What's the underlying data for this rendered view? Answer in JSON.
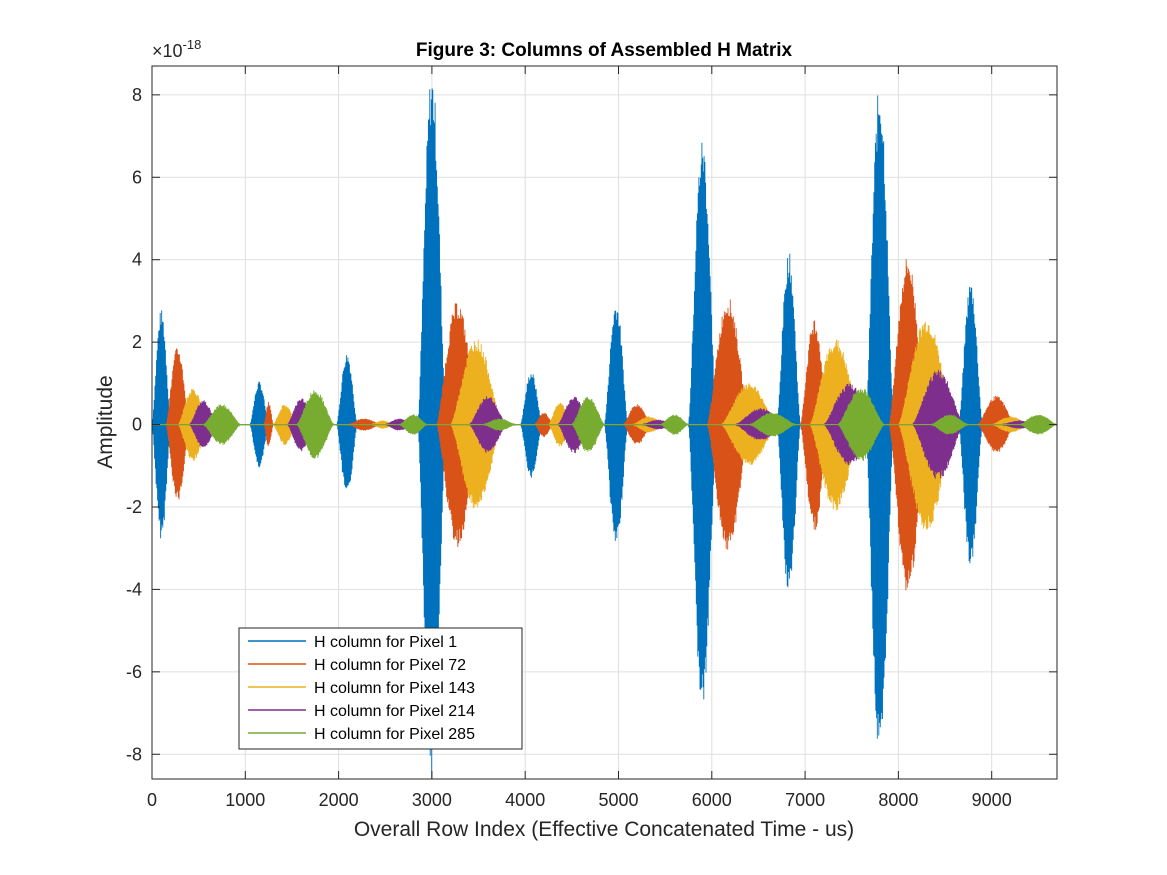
{
  "chart_data": {
    "type": "line",
    "title": "Figure 3: Columns of Assembled H Matrix",
    "xlabel": "Overall Row Index (Effective Concatenated Time - us)",
    "ylabel": "Amplitude",
    "y_exponent_base": "×10",
    "y_exponent_power": "-18",
    "xlim": [
      0,
      9700
    ],
    "ylim": [
      -8.6,
      8.7
    ],
    "xticks": [
      0,
      1000,
      2000,
      3000,
      4000,
      5000,
      6000,
      7000,
      8000,
      9000
    ],
    "yticks": [
      -8,
      -6,
      -4,
      -2,
      0,
      2,
      4,
      6,
      8
    ],
    "grid": true,
    "legend_location": "bottom-left",
    "series": [
      {
        "name": "H column for Pixel 1",
        "color": "#0072BD",
        "bursts": [
          {
            "start": 0,
            "end": 200,
            "amp": 2.8
          },
          {
            "start": 1050,
            "end": 1250,
            "amp": 1.05
          },
          {
            "start": 1980,
            "end": 2200,
            "amp": 1.75
          },
          {
            "start": 2850,
            "end": 3150,
            "amp": 8.6
          },
          {
            "start": 3950,
            "end": 4180,
            "amp": 1.3
          },
          {
            "start": 4850,
            "end": 5100,
            "amp": 3.0
          },
          {
            "start": 5750,
            "end": 6050,
            "amp": 7.0
          },
          {
            "start": 6700,
            "end": 6950,
            "amp": 4.2
          },
          {
            "start": 7650,
            "end": 7950,
            "amp": 8.3
          },
          {
            "start": 8650,
            "end": 8900,
            "amp": 3.5
          }
        ]
      },
      {
        "name": "H column for Pixel 72",
        "color": "#D95319",
        "bursts": [
          {
            "start": 150,
            "end": 400,
            "amp": 1.9
          },
          {
            "start": 1200,
            "end": 1300,
            "amp": 0.55
          },
          {
            "start": 2100,
            "end": 2450,
            "amp": 0.15
          },
          {
            "start": 3050,
            "end": 3500,
            "amp": 3.0
          },
          {
            "start": 4100,
            "end": 4300,
            "amp": 0.3
          },
          {
            "start": 5050,
            "end": 5350,
            "amp": 0.5
          },
          {
            "start": 5950,
            "end": 6400,
            "amp": 3.1
          },
          {
            "start": 6950,
            "end": 7250,
            "amp": 2.6
          },
          {
            "start": 7900,
            "end": 8300,
            "amp": 4.1
          },
          {
            "start": 8850,
            "end": 9250,
            "amp": 0.7
          }
        ]
      },
      {
        "name": "H column for Pixel 143",
        "color": "#EDB120",
        "bursts": [
          {
            "start": 280,
            "end": 600,
            "amp": 0.9
          },
          {
            "start": 1300,
            "end": 1550,
            "amp": 0.5
          },
          {
            "start": 2350,
            "end": 2600,
            "amp": 0.1
          },
          {
            "start": 3200,
            "end": 3750,
            "amp": 2.1
          },
          {
            "start": 4250,
            "end": 4500,
            "amp": 0.55
          },
          {
            "start": 5150,
            "end": 5500,
            "amp": 0.2
          },
          {
            "start": 6100,
            "end": 6700,
            "amp": 1.0
          },
          {
            "start": 7050,
            "end": 7600,
            "amp": 2.1
          },
          {
            "start": 8000,
            "end": 8600,
            "amp": 2.6
          },
          {
            "start": 9000,
            "end": 9400,
            "amp": 0.2
          }
        ]
      },
      {
        "name": "H column for Pixel 214",
        "color": "#7E2F8E",
        "bursts": [
          {
            "start": 400,
            "end": 700,
            "amp": 0.6
          },
          {
            "start": 1450,
            "end": 1750,
            "amp": 0.65
          },
          {
            "start": 2500,
            "end": 2800,
            "amp": 0.15
          },
          {
            "start": 3400,
            "end": 3800,
            "amp": 0.7
          },
          {
            "start": 4350,
            "end": 4700,
            "amp": 0.7
          },
          {
            "start": 5250,
            "end": 5600,
            "amp": 0.12
          },
          {
            "start": 6250,
            "end": 6800,
            "amp": 0.4
          },
          {
            "start": 7200,
            "end": 7750,
            "amp": 1.0
          },
          {
            "start": 8150,
            "end": 8700,
            "amp": 1.35
          },
          {
            "start": 9100,
            "end": 9500,
            "amp": 0.1
          }
        ]
      },
      {
        "name": "H column for Pixel 285",
        "color": "#77AC30",
        "bursts": [
          {
            "start": 550,
            "end": 950,
            "amp": 0.5
          },
          {
            "start": 1550,
            "end": 1950,
            "amp": 0.85
          },
          {
            "start": 2650,
            "end": 2950,
            "amp": 0.25
          },
          {
            "start": 3550,
            "end": 3900,
            "amp": 0.15
          },
          {
            "start": 4500,
            "end": 4850,
            "amp": 0.7
          },
          {
            "start": 5450,
            "end": 5750,
            "amp": 0.25
          },
          {
            "start": 6400,
            "end": 6900,
            "amp": 0.3
          },
          {
            "start": 7350,
            "end": 7850,
            "amp": 0.9
          },
          {
            "start": 8350,
            "end": 8750,
            "amp": 0.25
          },
          {
            "start": 9300,
            "end": 9700,
            "amp": 0.25
          }
        ]
      }
    ]
  }
}
